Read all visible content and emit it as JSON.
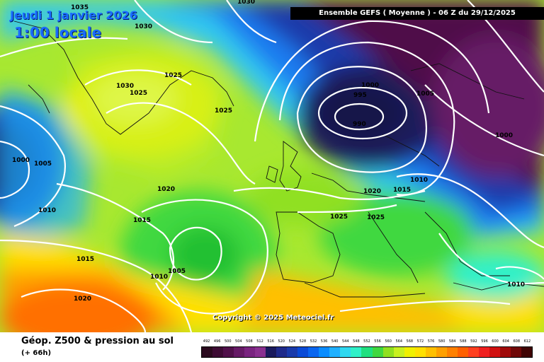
{
  "header": {
    "date": "Jeudi 1 janvier 2026",
    "local_time": "1:00 locale",
    "title": "Ensemble GEFS  ( Moyenne )  - 06 Z du 29/12/2025"
  },
  "copyright": "Copyright © 2025 Meteociel.fr",
  "footer": {
    "title": "Géop. Z500 & pression au sol",
    "subtitle": "(+ 66h)"
  },
  "isobar_labels": [
    {
      "text": "1035"
    },
    {
      "text": "1030"
    },
    {
      "text": "1030"
    },
    {
      "text": "1025"
    },
    {
      "text": "1025"
    },
    {
      "text": "1030"
    },
    {
      "text": "1025"
    },
    {
      "text": "1000"
    },
    {
      "text": "1005"
    },
    {
      "text": "1010"
    },
    {
      "text": "1020"
    },
    {
      "text": "1015"
    },
    {
      "text": "1015"
    },
    {
      "text": "1005"
    },
    {
      "text": "1010"
    },
    {
      "text": "1020"
    },
    {
      "text": "1000"
    },
    {
      "text": "995"
    },
    {
      "text": "990"
    },
    {
      "text": "1005"
    },
    {
      "text": "1000"
    },
    {
      "text": "1010"
    },
    {
      "text": "1020"
    },
    {
      "text": "1015"
    },
    {
      "text": "1025"
    },
    {
      "text": "1025"
    },
    {
      "text": "1010"
    },
    {
      "text": "1030"
    }
  ],
  "legend": [
    {
      "label": "492",
      "color": "#2a0a1e"
    },
    {
      "label": "496",
      "color": "#3d0b34"
    },
    {
      "label": "500",
      "color": "#50104a"
    },
    {
      "label": "504",
      "color": "#661a66"
    },
    {
      "label": "508",
      "color": "#7a2480"
    },
    {
      "label": "512",
      "color": "#8a3090"
    },
    {
      "label": "516",
      "color": "#1a1a5c"
    },
    {
      "label": "520",
      "color": "#1f2a8a"
    },
    {
      "label": "524",
      "color": "#1a3aaa"
    },
    {
      "label": "528",
      "color": "#0a4ad6"
    },
    {
      "label": "532",
      "color": "#0a66f0"
    },
    {
      "label": "536",
      "color": "#0a8cff"
    },
    {
      "label": "540",
      "color": "#20b0ff"
    },
    {
      "label": "544",
      "color": "#30d8f0"
    },
    {
      "label": "548",
      "color": "#30f0c8"
    },
    {
      "label": "552",
      "color": "#20e080"
    },
    {
      "label": "556",
      "color": "#40d840"
    },
    {
      "label": "560",
      "color": "#90e020"
    },
    {
      "label": "564",
      "color": "#c8f020"
    },
    {
      "label": "568",
      "color": "#f0f000"
    },
    {
      "label": "572",
      "color": "#ffe000"
    },
    {
      "label": "576",
      "color": "#ffc000"
    },
    {
      "label": "580",
      "color": "#ffa000"
    },
    {
      "label": "584",
      "color": "#ff8000"
    },
    {
      "label": "588",
      "color": "#ff6000"
    },
    {
      "label": "592",
      "color": "#ff4020"
    },
    {
      "label": "596",
      "color": "#f02020"
    },
    {
      "label": "600",
      "color": "#d01010"
    },
    {
      "label": "604",
      "color": "#a00a0a"
    },
    {
      "label": "608",
      "color": "#700808"
    },
    {
      "label": "612",
      "color": "#400404"
    }
  ]
}
